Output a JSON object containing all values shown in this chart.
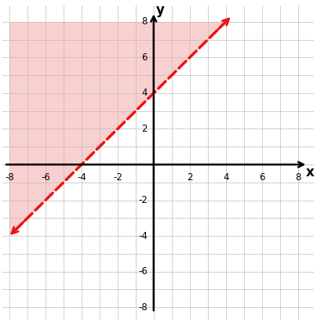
{
  "xlim": [
    -8,
    8
  ],
  "ylim": [
    -8,
    8
  ],
  "xticks": [
    -8,
    -6,
    -4,
    -2,
    2,
    4,
    6,
    8
  ],
  "yticks": [
    -8,
    -6,
    -4,
    -2,
    2,
    4,
    6,
    8
  ],
  "xlabel": "x",
  "ylabel": "y",
  "line_slope": 1,
  "line_intercept": 4,
  "line_color": "#ee1111",
  "line_style": "--",
  "line_width": 2.5,
  "shade_color": "#f5aaaa",
  "shade_alpha": 0.55,
  "grid_color": "#bbbbbb",
  "grid_alpha": 0.7,
  "axis_color": "#000000",
  "background_color": "#ffffff",
  "line_x1": -7.7,
  "line_x2": 4.0
}
